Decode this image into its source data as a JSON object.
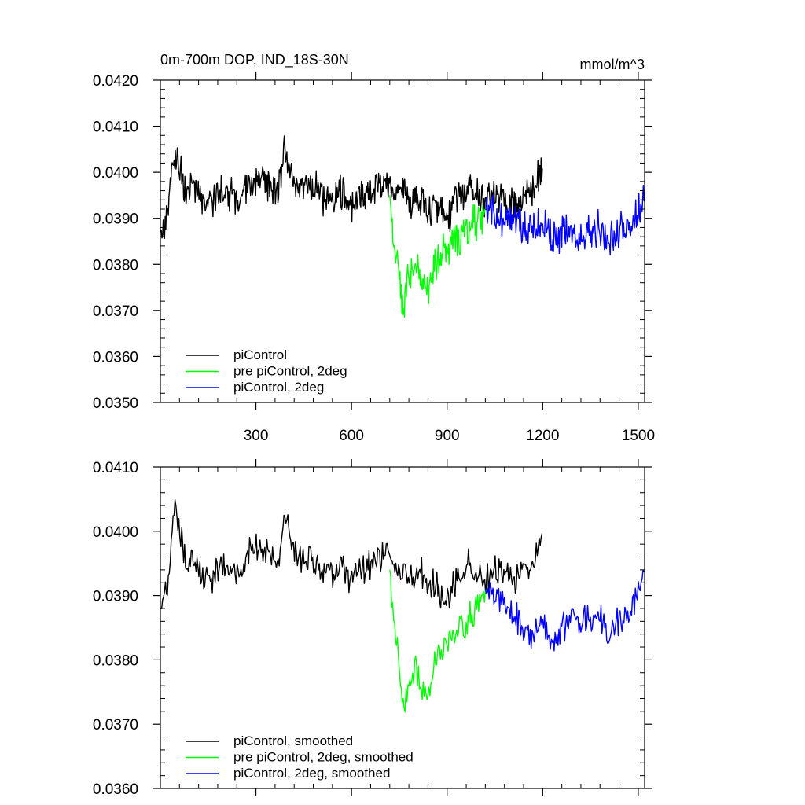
{
  "chart_data": [
    {
      "type": "line",
      "title": "0m-700m DOP, IND_18S-30N",
      "units": "mmol/m^3",
      "xlim": [
        0,
        1520
      ],
      "ylim": [
        0.035,
        0.042
      ],
      "xticks": [
        300,
        600,
        900,
        1200,
        1500
      ],
      "xtick_labels": [
        "300",
        "600",
        "900",
        "1200",
        "1500"
      ],
      "yticks": [
        0.035,
        0.036,
        0.037,
        0.038,
        0.039,
        0.04,
        0.041,
        0.042
      ],
      "ytick_labels": [
        "0.0350",
        "0.0360",
        "0.0370",
        "0.0380",
        "0.0390",
        "0.0400",
        "0.0410",
        "0.0420"
      ],
      "grid": false,
      "legend_position": "bottom-left",
      "series": [
        {
          "name": "piControl",
          "color": "#000000",
          "x": [
            1,
            25,
            40,
            60,
            80,
            100,
            130,
            160,
            190,
            220,
            250,
            280,
            310,
            340,
            370,
            390,
            420,
            450,
            480,
            510,
            540,
            570,
            600,
            630,
            660,
            690,
            720,
            740,
            760,
            780,
            800,
            820,
            840,
            860,
            880,
            900,
            930,
            960,
            990,
            1020,
            1050,
            1080,
            1110,
            1140,
            1170,
            1200
          ],
          "y": [
            0.0387,
            0.0392,
            0.0404,
            0.0402,
            0.0395,
            0.0397,
            0.0394,
            0.0393,
            0.0396,
            0.0395,
            0.0394,
            0.0398,
            0.0399,
            0.0397,
            0.0396,
            0.0405,
            0.0398,
            0.0396,
            0.0397,
            0.0395,
            0.0394,
            0.0396,
            0.0393,
            0.0395,
            0.0396,
            0.0397,
            0.0398,
            0.0395,
            0.0396,
            0.0393,
            0.0394,
            0.0395,
            0.0392,
            0.0393,
            0.0391,
            0.0389,
            0.0394,
            0.0396,
            0.0395,
            0.0393,
            0.0396,
            0.0394,
            0.0393,
            0.0395,
            0.0396,
            0.0401
          ]
        },
        {
          "name": "pre piControl, 2deg",
          "color": "#00ff00",
          "x": [
            720,
            735,
            750,
            765,
            780,
            800,
            820,
            840,
            860,
            880,
            900,
            930,
            960,
            990,
            1020
          ],
          "y": [
            0.0395,
            0.0383,
            0.0376,
            0.037,
            0.0378,
            0.038,
            0.0377,
            0.0374,
            0.038,
            0.0382,
            0.0384,
            0.0385,
            0.0387,
            0.0389,
            0.0392
          ]
        },
        {
          "name": "piControl, 2deg",
          "color": "#0000ff",
          "x": [
            1020,
            1050,
            1080,
            1110,
            1140,
            1170,
            1200,
            1230,
            1260,
            1290,
            1320,
            1350,
            1380,
            1410,
            1440,
            1470,
            1500,
            1520
          ],
          "y": [
            0.0392,
            0.0391,
            0.039,
            0.0389,
            0.0388,
            0.0387,
            0.0389,
            0.0385,
            0.0387,
            0.0388,
            0.0386,
            0.0387,
            0.0388,
            0.0385,
            0.0387,
            0.0388,
            0.0392,
            0.0394
          ]
        }
      ]
    },
    {
      "type": "line",
      "xlim": [
        0,
        1520
      ],
      "ylim": [
        0.036,
        0.041
      ],
      "xticks": [
        300,
        600,
        900,
        1200,
        1500
      ],
      "xtick_labels": [],
      "yticks": [
        0.036,
        0.037,
        0.038,
        0.039,
        0.04,
        0.041
      ],
      "ytick_labels": [
        "0.0360",
        "0.0370",
        "0.0380",
        "0.0390",
        "0.0400",
        "0.0410"
      ],
      "grid": false,
      "legend_position": "bottom-left",
      "series": [
        {
          "name": "piControl, smoothed",
          "color": "#000000",
          "x": [
            1,
            25,
            40,
            60,
            80,
            100,
            130,
            160,
            190,
            220,
            250,
            280,
            310,
            340,
            370,
            390,
            420,
            450,
            480,
            510,
            540,
            570,
            600,
            630,
            660,
            690,
            720,
            740,
            760,
            780,
            800,
            820,
            840,
            860,
            880,
            900,
            930,
            960,
            990,
            1020,
            1050,
            1080,
            1110,
            1140,
            1170,
            1200
          ],
          "y": [
            0.0388,
            0.0392,
            0.0403,
            0.0401,
            0.0394,
            0.0396,
            0.0393,
            0.0392,
            0.0395,
            0.0394,
            0.0393,
            0.0397,
            0.0398,
            0.0396,
            0.0395,
            0.0403,
            0.0397,
            0.0395,
            0.0396,
            0.0394,
            0.0393,
            0.0395,
            0.0392,
            0.0394,
            0.0395,
            0.0396,
            0.0397,
            0.0394,
            0.0395,
            0.0392,
            0.0393,
            0.0394,
            0.0391,
            0.0392,
            0.039,
            0.0389,
            0.0393,
            0.0395,
            0.0394,
            0.0392,
            0.0395,
            0.0393,
            0.0392,
            0.0394,
            0.0395,
            0.04
          ]
        },
        {
          "name": "pre piControl, 2deg, smoothed",
          "color": "#00ff00",
          "x": [
            720,
            735,
            750,
            765,
            780,
            800,
            820,
            840,
            860,
            880,
            900,
            930,
            960,
            990,
            1020
          ],
          "y": [
            0.0394,
            0.0385,
            0.0378,
            0.0373,
            0.0376,
            0.0379,
            0.0376,
            0.0374,
            0.0379,
            0.0381,
            0.0383,
            0.0385,
            0.0386,
            0.0388,
            0.0391
          ]
        },
        {
          "name": "piControl, 2deg, smoothed",
          "color": "#0000ff",
          "x": [
            1020,
            1050,
            1080,
            1110,
            1140,
            1170,
            1200,
            1230,
            1260,
            1290,
            1320,
            1350,
            1380,
            1410,
            1440,
            1470,
            1500,
            1520
          ],
          "y": [
            0.0391,
            0.039,
            0.0389,
            0.0387,
            0.0385,
            0.0383,
            0.0386,
            0.0382,
            0.0385,
            0.0387,
            0.0386,
            0.0386,
            0.0387,
            0.0384,
            0.0386,
            0.0387,
            0.0391,
            0.0394
          ]
        }
      ]
    }
  ]
}
